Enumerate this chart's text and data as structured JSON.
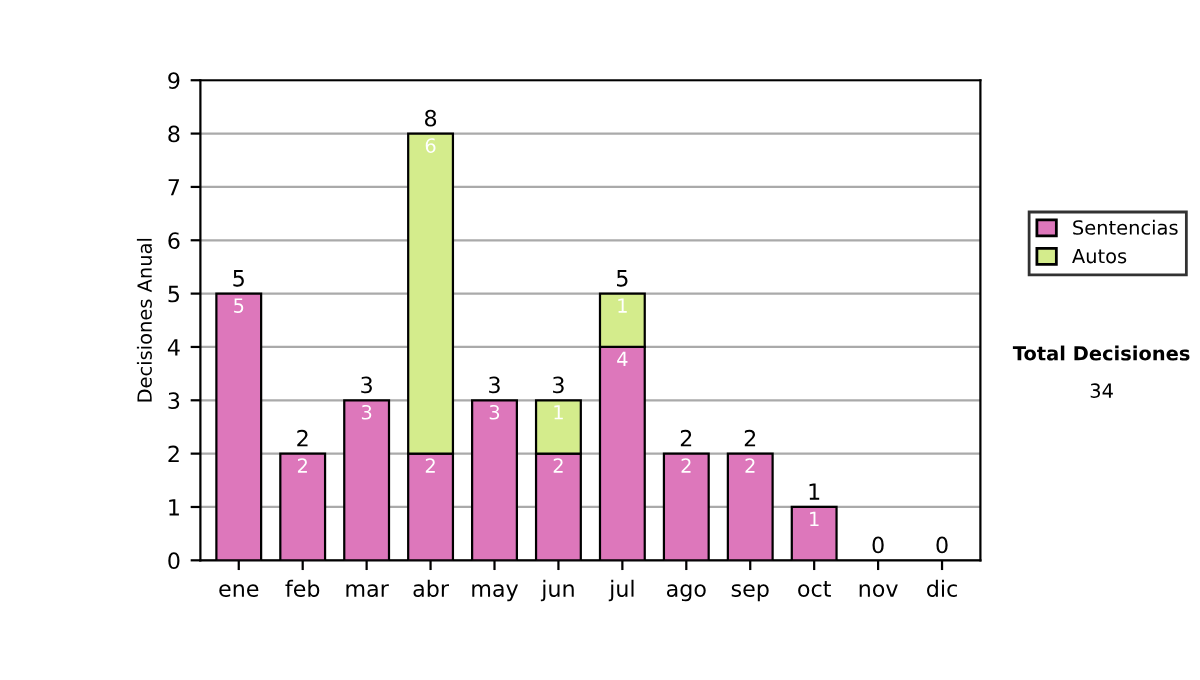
{
  "chart_data": {
    "type": "bar",
    "stacked": true,
    "ylabel": "Decisiones Anual",
    "categories": [
      "ene",
      "feb",
      "mar",
      "abr",
      "may",
      "jun",
      "jul",
      "ago",
      "sep",
      "oct",
      "nov",
      "dic"
    ],
    "series": [
      {
        "name": "Sentencias",
        "color": "#dd77bb",
        "values": [
          5,
          2,
          3,
          2,
          3,
          2,
          4,
          2,
          2,
          1,
          0,
          0
        ],
        "value_labels": [
          "5",
          "2",
          "3",
          "2",
          "3",
          "2",
          "4",
          "2",
          "2",
          "1",
          null,
          null
        ]
      },
      {
        "name": "Autos",
        "color": "#d4ec8c",
        "values": [
          0,
          0,
          0,
          6,
          0,
          1,
          1,
          0,
          0,
          0,
          0,
          0
        ],
        "value_labels": [
          null,
          null,
          null,
          "6",
          null,
          "1",
          "1",
          null,
          null,
          null,
          null,
          null
        ]
      }
    ],
    "totals": [
      "5",
      "2",
      "3",
      "8",
      "3",
      "3",
      "5",
      "2",
      "2",
      "1",
      "0",
      "0"
    ],
    "ylim": [
      0,
      9
    ],
    "yticks": [
      0,
      1,
      2,
      3,
      4,
      5,
      6,
      7,
      8,
      9
    ],
    "grid": "y",
    "legend": "right",
    "annotations": [
      "Total Decisiones",
      "34"
    ]
  }
}
